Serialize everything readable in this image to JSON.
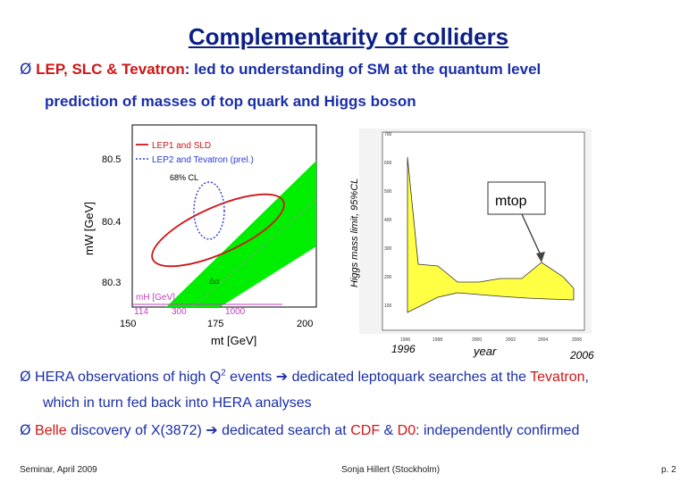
{
  "slide": {
    "title": "Complementarity of colliders",
    "bullet1": {
      "marker": "Ø",
      "highlight": "LEP, SLC & Tevatron",
      "rest": ": led to understanding of SM at the quantum level"
    },
    "sub1": "prediction of masses of top quark and Higgs boson",
    "bullet2": {
      "marker": "Ø",
      "part1": " HERA observations of high Q",
      "sup": "2",
      "part2": " events ",
      "arrow": "➔",
      "part3": " dedicated leptoquark searches at the ",
      "highlight": "Tevatron",
      "part4": ","
    },
    "sub2": "which in turn fed back into HERA analyses",
    "bullet3": {
      "marker": "Ø",
      "highlight1": "Belle",
      "part1": " discovery of X(3872) ",
      "arrow": "➔",
      "part2": " dedicated search at ",
      "highlight2": "CDF",
      "amp": " & ",
      "highlight3": "D0",
      "part3": ": independently confirmed"
    },
    "footer": {
      "left": "Seminar, April 2009",
      "center": "Sonja Hillert (Stockholm)",
      "right": "p. 2"
    }
  },
  "plot_left": {
    "legend1": "LEP1 and SLD",
    "legend2": "LEP2 and Tevatron (prel.)",
    "cl": "68% CL",
    "ylabel": "mW [GeV]",
    "xlabel": "mt [GeV]",
    "yticks": [
      "80.5",
      "80.4",
      "80.3"
    ],
    "xticks": [
      "150",
      "175",
      "200"
    ],
    "mh_label": "mH [GeV]",
    "mh_values": [
      "114",
      "300",
      "1000"
    ],
    "band_label": "Δα",
    "colors": {
      "band": "#00ee00",
      "red": "#d01616",
      "blue": "#2a3ad8",
      "magenta": "#c03fbf"
    }
  },
  "plot_right": {
    "ylabel": "Higgs mass limit, 95%CL",
    "xlabel": "year",
    "xtick_left": "1996",
    "xtick_right": "2006",
    "mtop_label": "mtop",
    "small_xticks": [
      "1996",
      "1998",
      "2000",
      "2002",
      "2004",
      "2006"
    ],
    "small_yticks": [
      "700",
      "600",
      "500",
      "400",
      "300",
      "200",
      "100"
    ],
    "band_color": "#ffff44"
  }
}
